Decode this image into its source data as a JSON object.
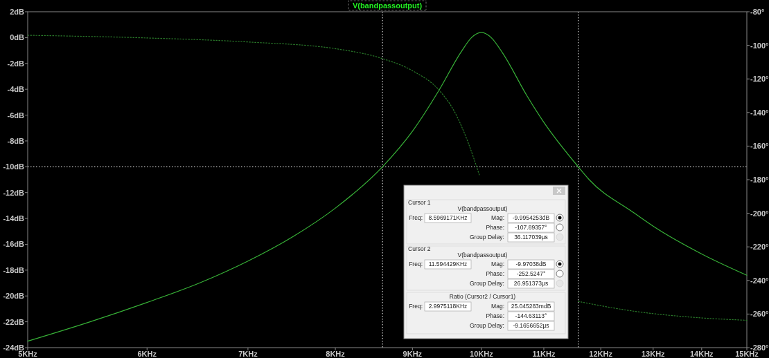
{
  "chart_data": {
    "type": "line",
    "xlim": [
      5,
      15
    ],
    "log": "x",
    "xticks": [
      {
        "value": 5,
        "label": "5KHz"
      },
      {
        "value": 6,
        "label": "6KHz"
      },
      {
        "value": 7,
        "label": "7KHz"
      },
      {
        "value": 8,
        "label": "8KHz"
      },
      {
        "value": 9,
        "label": "9KHz"
      },
      {
        "value": 10,
        "label": "10KHz"
      },
      {
        "value": 11,
        "label": "11KHz"
      },
      {
        "value": 12,
        "label": "12KHz"
      },
      {
        "value": 13,
        "label": "13KHz"
      },
      {
        "value": 14,
        "label": "14KHz"
      },
      {
        "value": 15,
        "label": "15KHz"
      }
    ],
    "ylim": [
      -24,
      2
    ],
    "yticks": [
      {
        "value": 2,
        "label": "2dB"
      },
      {
        "value": 0,
        "label": "0dB"
      },
      {
        "value": -2,
        "label": "-2dB"
      },
      {
        "value": -4,
        "label": "-4dB"
      },
      {
        "value": -6,
        "label": "-6dB"
      },
      {
        "value": -8,
        "label": "-8dB"
      },
      {
        "value": -10,
        "label": "-10dB"
      },
      {
        "value": -12,
        "label": "-12dB"
      },
      {
        "value": -14,
        "label": "-14dB"
      },
      {
        "value": -16,
        "label": "-16dB"
      },
      {
        "value": -18,
        "label": "-18dB"
      },
      {
        "value": -20,
        "label": "-20dB"
      },
      {
        "value": -22,
        "label": "-22dB"
      },
      {
        "value": -24,
        "label": "-24dB"
      }
    ],
    "y2lim": [
      -280,
      -80
    ],
    "y2ticks": [
      {
        "value": -80,
        "label": "-80°"
      },
      {
        "value": -100,
        "label": "-100°"
      },
      {
        "value": -120,
        "label": "-120°"
      },
      {
        "value": -140,
        "label": "-140°"
      },
      {
        "value": -160,
        "label": "-160°"
      },
      {
        "value": -180,
        "label": "-180°"
      },
      {
        "value": -200,
        "label": "-200°"
      },
      {
        "value": -220,
        "label": "-220°"
      },
      {
        "value": -240,
        "label": "-240°"
      },
      {
        "value": -260,
        "label": "-260°"
      },
      {
        "value": -280,
        "label": "-280°"
      }
    ],
    "legend": "top",
    "line_style": "solid",
    "marker": "none",
    "grid": false,
    "series": [
      {
        "name": "V(bandpassoutput)",
        "color": "#37b037",
        "x": [
          5,
          5.5,
          6,
          6.5,
          7,
          7.5,
          8,
          8.597,
          9,
          9.37,
          9.69,
          9.85,
          10,
          10.15,
          10.33,
          10.72,
          11,
          11.594,
          11.79,
          12.6,
          13,
          14,
          15
        ],
        "values": [
          -23.5,
          -22.0,
          -20.5,
          -19.0,
          -17.3,
          -15.4,
          -13.2,
          -10,
          -7.25,
          -4.1,
          -1.15,
          0.0,
          0.4,
          0.0,
          -1.2,
          -4.5,
          -6.55,
          -10,
          -11.0,
          -13.5,
          -14.6,
          -16.75,
          -18.4
        ]
      },
      {
        "color": "#2a7a2a",
        "axis": "y2",
        "line_style": "dotted",
        "x": [
          5,
          6,
          7,
          8,
          8.597,
          9.02,
          9.37,
          9.61,
          9.8,
          9.97,
          10.5,
          11.594,
          12.6,
          14,
          15
        ],
        "values": [
          -94,
          -95.6,
          -98,
          -102,
          -107.9,
          -115.6,
          -126.5,
          -140.5,
          -158,
          -177.4,
          null,
          -252.5,
          -258.2,
          -262.3,
          -263.7
        ]
      }
    ],
    "ref_lines": [
      {
        "axis": "x",
        "value": 8.5969171,
        "color": "#ffffff",
        "line_style": "dotted"
      },
      {
        "axis": "x",
        "value": 11.594429,
        "color": "#ffffff",
        "line_style": "dotted"
      },
      {
        "axis": "y",
        "value": -10,
        "color": "#ffffff",
        "line_style": "dotted"
      }
    ],
    "annotations": [
      "Cursor 1",
      "V(bandpassoutput)",
      "Freq:",
      "8.5969171KHz",
      "Mag:",
      "-9.9954253dB",
      "Phase:",
      "-107.89357°",
      "Group Delay:",
      "36.117039µs",
      "Cursor 2",
      "V(bandpassoutput)",
      "Freq:",
      "11.594429KHz",
      "Mag:",
      "-9.97038dB",
      "Phase:",
      "-252.5247°",
      "Group Delay:",
      "26.951373µs",
      "Ratio (Cursor2 / Cursor1)",
      "Freq:",
      "2.9975118KHz",
      "Mag:",
      "25.045283mdB",
      "Phase:",
      "-144.63113°",
      "Group Delay:",
      "-9.1656652µs"
    ]
  }
}
